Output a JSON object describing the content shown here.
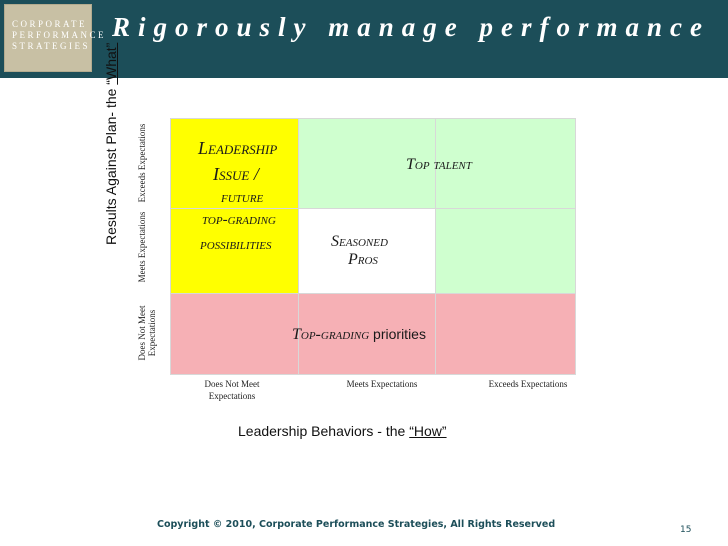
{
  "logo": {
    "lines": [
      "CORPORATE",
      "PERFORMANCE",
      "STRATEGIES"
    ]
  },
  "title": "Rigorously manage performance",
  "y_axis": {
    "title_prefix": "Results Against Plan- the ",
    "title_emph": "“What”",
    "rows": [
      "Exceeds Expectations",
      "Meets Expectations",
      "Does Not Meet Expectations"
    ]
  },
  "x_axis": {
    "title_prefix": "Leadership Behaviors - the ",
    "title_emph": "“How”",
    "columns": [
      "Does Not Meet Expectations",
      "Meets Expectations",
      "Exceeds Expectations"
    ]
  },
  "cells": {
    "leadership_issue": [
      "Leadership",
      "Issue /",
      "future",
      "top-grading",
      "possibilities"
    ],
    "top_talent": "Top talent",
    "seasoned_pros": [
      "Seasoned",
      "Pros"
    ],
    "top_grading_priorities": {
      "styled": "Top-grading",
      "plain": " priorities"
    }
  },
  "colors": {
    "header": "#1c4e59",
    "yellow": "#ffff00",
    "green": "#cfffcf",
    "red": "#f6b0b5"
  },
  "footer": {
    "copyright": "Copyright © 2010, Corporate Performance Strategies, All Rights Reserved",
    "page_number": "15"
  }
}
